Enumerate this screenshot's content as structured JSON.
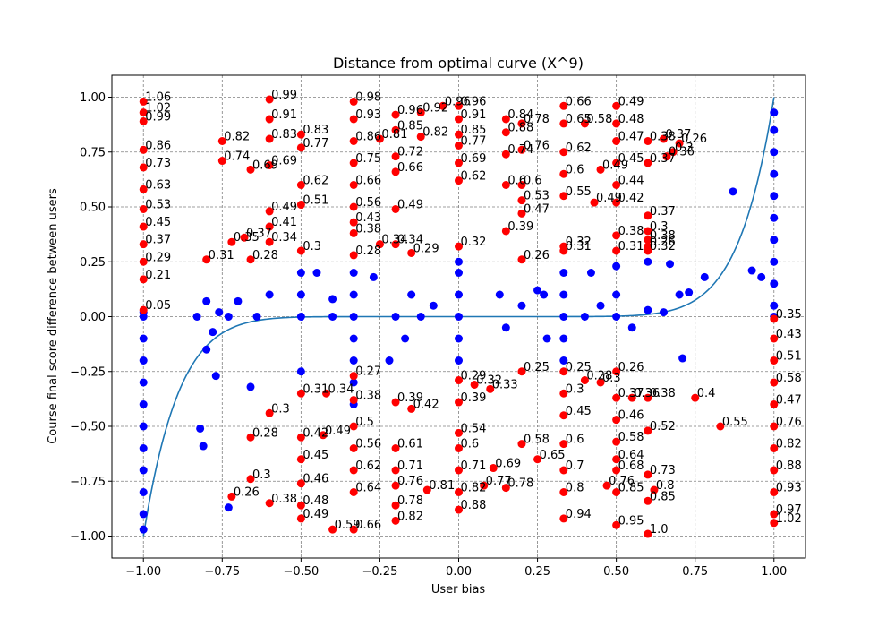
{
  "chart_data": {
    "type": "scatter",
    "title": "Distance from optimal curve (X^9)",
    "xlabel": "User bias",
    "ylabel": "Course final score difference between users",
    "xlim": [
      -1.1,
      1.1
    ],
    "ylim": [
      -1.1,
      1.1
    ],
    "grid": true,
    "x_ticks": [
      -1.0,
      -0.75,
      -0.5,
      -0.25,
      0.0,
      0.25,
      0.5,
      0.75,
      1.0
    ],
    "x_tick_labels": [
      "−1.00",
      "−0.75",
      "−0.50",
      "−0.25",
      "0.00",
      "0.25",
      "0.50",
      "0.75",
      "1.00"
    ],
    "y_ticks": [
      -1.0,
      -0.75,
      -0.5,
      -0.25,
      0.0,
      0.25,
      0.5,
      0.75,
      1.0
    ],
    "y_tick_labels": [
      "−1.00",
      "−0.75",
      "−0.50",
      "−0.25",
      "0.00",
      "0.25",
      "0.50",
      "0.75",
      "1.00"
    ],
    "curve": {
      "formula": "y = x^9",
      "color": "#1f77b4"
    },
    "colors": {
      "near": "#0000ff",
      "far": "#ff0000"
    },
    "blue_points": [
      [
        -1.0,
        -0.97
      ],
      [
        -1.0,
        -0.9
      ],
      [
        -1.0,
        -0.8
      ],
      [
        -1.0,
        -0.7
      ],
      [
        -1.0,
        -0.6
      ],
      [
        -1.0,
        -0.5
      ],
      [
        -1.0,
        -0.4
      ],
      [
        -1.0,
        -0.3
      ],
      [
        -1.0,
        -0.2
      ],
      [
        -1.0,
        -0.1
      ],
      [
        -1.0,
        0.0
      ],
      [
        -1.0,
        0.02
      ],
      [
        -0.83,
        0.0
      ],
      [
        -0.82,
        -0.51
      ],
      [
        -0.81,
        -0.59
      ],
      [
        -0.8,
        -0.15
      ],
      [
        -0.8,
        0.07
      ],
      [
        -0.78,
        -0.07
      ],
      [
        -0.77,
        -0.27
      ],
      [
        -0.76,
        0.02
      ],
      [
        -0.73,
        -0.87
      ],
      [
        -0.73,
        0.0
      ],
      [
        -0.7,
        0.07
      ],
      [
        -0.66,
        -0.32
      ],
      [
        -0.64,
        0.0
      ],
      [
        -0.6,
        0.1
      ],
      [
        -0.5,
        -0.25
      ],
      [
        -0.5,
        0.0
      ],
      [
        -0.5,
        0.1
      ],
      [
        -0.5,
        0.2
      ],
      [
        -0.45,
        0.2
      ],
      [
        -0.4,
        0.0
      ],
      [
        -0.4,
        0.08
      ],
      [
        -0.333,
        -0.4
      ],
      [
        -0.333,
        -0.3
      ],
      [
        -0.333,
        -0.2
      ],
      [
        -0.333,
        -0.1
      ],
      [
        -0.333,
        0.0
      ],
      [
        -0.333,
        0.1
      ],
      [
        -0.333,
        0.2
      ],
      [
        -0.27,
        0.18
      ],
      [
        -0.22,
        -0.2
      ],
      [
        -0.2,
        0.0
      ],
      [
        -0.17,
        -0.1
      ],
      [
        -0.15,
        0.1
      ],
      [
        -0.12,
        0.0
      ],
      [
        -0.08,
        0.05
      ],
      [
        0.0,
        -0.2
      ],
      [
        0.0,
        -0.1
      ],
      [
        0.0,
        0.0
      ],
      [
        0.0,
        0.1
      ],
      [
        0.0,
        0.2
      ],
      [
        0.0,
        0.25
      ],
      [
        0.13,
        0.1
      ],
      [
        0.15,
        -0.05
      ],
      [
        0.2,
        0.05
      ],
      [
        0.25,
        0.12
      ],
      [
        0.27,
        0.1
      ],
      [
        0.28,
        -0.1
      ],
      [
        0.333,
        -0.2
      ],
      [
        0.333,
        -0.1
      ],
      [
        0.333,
        0.0
      ],
      [
        0.333,
        0.1
      ],
      [
        0.333,
        0.2
      ],
      [
        0.4,
        0.0
      ],
      [
        0.42,
        0.2
      ],
      [
        0.45,
        0.05
      ],
      [
        0.5,
        0.0
      ],
      [
        0.5,
        0.1
      ],
      [
        0.5,
        0.23
      ],
      [
        0.55,
        -0.05
      ],
      [
        0.6,
        0.03
      ],
      [
        0.6,
        0.25
      ],
      [
        0.65,
        0.02
      ],
      [
        0.67,
        0.24
      ],
      [
        0.7,
        0.1
      ],
      [
        0.71,
        -0.19
      ],
      [
        0.73,
        0.11
      ],
      [
        0.78,
        0.18
      ],
      [
        0.87,
        0.57
      ],
      [
        0.93,
        0.21
      ],
      [
        0.96,
        0.18
      ],
      [
        1.0,
        0.93
      ],
      [
        1.0,
        0.85
      ],
      [
        1.0,
        0.75
      ],
      [
        1.0,
        0.65
      ],
      [
        1.0,
        0.55
      ],
      [
        1.0,
        0.45
      ],
      [
        1.0,
        0.35
      ],
      [
        1.0,
        0.25
      ],
      [
        1.0,
        0.15
      ],
      [
        1.0,
        0.05
      ],
      [
        1.0,
        0.0
      ]
    ],
    "red_points": [
      {
        "x": -1.0,
        "y": 0.98,
        "label": "1.06"
      },
      {
        "x": -1.0,
        "y": 0.93,
        "label": "1.02"
      },
      {
        "x": -1.0,
        "y": 0.89,
        "label": "0.99"
      },
      {
        "x": -1.0,
        "y": 0.76,
        "label": "0.86"
      },
      {
        "x": -1.0,
        "y": 0.68,
        "label": "0.73"
      },
      {
        "x": -1.0,
        "y": 0.58,
        "label": "0.63"
      },
      {
        "x": -1.0,
        "y": 0.49,
        "label": "0.53"
      },
      {
        "x": -1.0,
        "y": 0.41,
        "label": "0.45"
      },
      {
        "x": -1.0,
        "y": 0.33,
        "label": "0.37"
      },
      {
        "x": -1.0,
        "y": 0.25,
        "label": "0.29"
      },
      {
        "x": -1.0,
        "y": 0.17,
        "label": "0.21"
      },
      {
        "x": -1.0,
        "y": 0.03,
        "label": "0.05"
      },
      {
        "x": -0.8,
        "y": 0.26,
        "label": "0.31"
      },
      {
        "x": -0.75,
        "y": 0.71,
        "label": "0.74"
      },
      {
        "x": -0.75,
        "y": 0.8,
        "label": "0.82"
      },
      {
        "x": -0.72,
        "y": 0.34,
        "label": "0.35"
      },
      {
        "x": -0.68,
        "y": 0.36,
        "label": "0.37"
      },
      {
        "x": -0.66,
        "y": 0.26,
        "label": "0.28"
      },
      {
        "x": -0.66,
        "y": 0.67,
        "label": "0.69"
      },
      {
        "x": -0.6,
        "y": 0.99,
        "label": "0.99"
      },
      {
        "x": -0.6,
        "y": 0.9,
        "label": "0.91"
      },
      {
        "x": -0.6,
        "y": 0.81,
        "label": "0.83"
      },
      {
        "x": -0.6,
        "y": 0.69,
        "label": "0.69"
      },
      {
        "x": -0.6,
        "y": 0.48,
        "label": "0.49"
      },
      {
        "x": -0.6,
        "y": 0.41,
        "label": "0.41"
      },
      {
        "x": -0.6,
        "y": 0.34,
        "label": "0.34"
      },
      {
        "x": -0.6,
        "y": -0.44,
        "label": "0.3"
      },
      {
        "x": -0.6,
        "y": -0.85,
        "label": "0.38"
      },
      {
        "x": -0.66,
        "y": -0.55,
        "label": "0.28"
      },
      {
        "x": -0.66,
        "y": -0.74,
        "label": "0.3"
      },
      {
        "x": -0.72,
        "y": -0.82,
        "label": "0.26"
      },
      {
        "x": -0.5,
        "y": 0.83,
        "label": "0.83"
      },
      {
        "x": -0.5,
        "y": 0.77,
        "label": "0.77"
      },
      {
        "x": -0.5,
        "y": 0.6,
        "label": "0.62"
      },
      {
        "x": -0.5,
        "y": 0.51,
        "label": "0.51"
      },
      {
        "x": -0.5,
        "y": 0.3,
        "label": "0.3"
      },
      {
        "x": -0.5,
        "y": -0.35,
        "label": "0.31"
      },
      {
        "x": -0.5,
        "y": -0.55,
        "label": "0.42"
      },
      {
        "x": -0.5,
        "y": -0.65,
        "label": "0.45"
      },
      {
        "x": -0.5,
        "y": -0.76,
        "label": "0.46"
      },
      {
        "x": -0.5,
        "y": -0.86,
        "label": "0.48"
      },
      {
        "x": -0.5,
        "y": -0.92,
        "label": "0.49"
      },
      {
        "x": -0.42,
        "y": -0.35,
        "label": "0.34"
      },
      {
        "x": -0.43,
        "y": -0.54,
        "label": "0.49"
      },
      {
        "x": -0.4,
        "y": -0.97,
        "label": "0.59"
      },
      {
        "x": -0.333,
        "y": 0.98,
        "label": "0.98"
      },
      {
        "x": -0.333,
        "y": 0.9,
        "label": "0.93"
      },
      {
        "x": -0.333,
        "y": 0.8,
        "label": "0.86"
      },
      {
        "x": -0.333,
        "y": 0.7,
        "label": "0.75"
      },
      {
        "x": -0.333,
        "y": 0.6,
        "label": "0.66"
      },
      {
        "x": -0.333,
        "y": 0.5,
        "label": "0.56"
      },
      {
        "x": -0.333,
        "y": 0.43,
        "label": "0.43"
      },
      {
        "x": -0.333,
        "y": 0.38,
        "label": "0.38"
      },
      {
        "x": -0.333,
        "y": 0.28,
        "label": "0.28"
      },
      {
        "x": -0.333,
        "y": -0.27,
        "label": "0.27"
      },
      {
        "x": -0.333,
        "y": -0.38,
        "label": "0.38"
      },
      {
        "x": -0.333,
        "y": -0.5,
        "label": "0.5"
      },
      {
        "x": -0.333,
        "y": -0.6,
        "label": "0.56"
      },
      {
        "x": -0.333,
        "y": -0.7,
        "label": "0.62"
      },
      {
        "x": -0.333,
        "y": -0.8,
        "label": "0.64"
      },
      {
        "x": -0.333,
        "y": -0.97,
        "label": "0.66"
      },
      {
        "x": -0.25,
        "y": 0.81,
        "label": "0.81"
      },
      {
        "x": -0.25,
        "y": 0.33,
        "label": "0.34"
      },
      {
        "x": -0.2,
        "y": 0.92,
        "label": "0.96"
      },
      {
        "x": -0.2,
        "y": 0.85,
        "label": "0.85"
      },
      {
        "x": -0.2,
        "y": 0.73,
        "label": "0.72"
      },
      {
        "x": -0.2,
        "y": 0.66,
        "label": "0.66"
      },
      {
        "x": -0.2,
        "y": 0.49,
        "label": "0.49"
      },
      {
        "x": -0.2,
        "y": 0.33,
        "label": "0.34"
      },
      {
        "x": -0.2,
        "y": -0.39,
        "label": "0.39"
      },
      {
        "x": -0.2,
        "y": -0.6,
        "label": "0.61"
      },
      {
        "x": -0.2,
        "y": -0.7,
        "label": "0.71"
      },
      {
        "x": -0.2,
        "y": -0.77,
        "label": "0.76"
      },
      {
        "x": -0.2,
        "y": -0.86,
        "label": "0.78"
      },
      {
        "x": -0.2,
        "y": -0.93,
        "label": "0.82"
      },
      {
        "x": -0.15,
        "y": 0.29,
        "label": "0.29"
      },
      {
        "x": -0.15,
        "y": -0.42,
        "label": "0.42"
      },
      {
        "x": -0.12,
        "y": 0.93,
        "label": "0.92"
      },
      {
        "x": -0.12,
        "y": 0.82,
        "label": "0.82"
      },
      {
        "x": -0.1,
        "y": -0.79,
        "label": "0.81"
      },
      {
        "x": -0.05,
        "y": 0.96,
        "label": "0.96"
      },
      {
        "x": 0.0,
        "y": 0.96,
        "label": "0.96"
      },
      {
        "x": 0.0,
        "y": 0.9,
        "label": "0.91"
      },
      {
        "x": 0.0,
        "y": 0.83,
        "label": "0.85"
      },
      {
        "x": 0.0,
        "y": 0.78,
        "label": "0.77"
      },
      {
        "x": 0.0,
        "y": 0.7,
        "label": "0.69"
      },
      {
        "x": 0.0,
        "y": 0.62,
        "label": "0.62"
      },
      {
        "x": 0.0,
        "y": 0.32,
        "label": "0.32"
      },
      {
        "x": 0.0,
        "y": -0.29,
        "label": "0.29"
      },
      {
        "x": 0.0,
        "y": -0.39,
        "label": "0.39"
      },
      {
        "x": 0.0,
        "y": -0.53,
        "label": "0.54"
      },
      {
        "x": 0.0,
        "y": -0.6,
        "label": "0.6"
      },
      {
        "x": 0.0,
        "y": -0.7,
        "label": "0.71"
      },
      {
        "x": 0.0,
        "y": -0.8,
        "label": "0.82"
      },
      {
        "x": 0.0,
        "y": -0.88,
        "label": "0.88"
      },
      {
        "x": 0.05,
        "y": -0.31,
        "label": "0.32"
      },
      {
        "x": 0.08,
        "y": -0.77,
        "label": "0.77"
      },
      {
        "x": 0.1,
        "y": -0.33,
        "label": "0.33"
      },
      {
        "x": 0.11,
        "y": -0.69,
        "label": "0.69"
      },
      {
        "x": 0.15,
        "y": 0.9,
        "label": "0.84"
      },
      {
        "x": 0.15,
        "y": 0.84,
        "label": "0.88"
      },
      {
        "x": 0.15,
        "y": 0.74,
        "label": "0.74"
      },
      {
        "x": 0.15,
        "y": 0.6,
        "label": "0.6"
      },
      {
        "x": 0.15,
        "y": 0.39,
        "label": "0.39"
      },
      {
        "x": 0.15,
        "y": -0.78,
        "label": "0.78"
      },
      {
        "x": 0.2,
        "y": 0.88,
        "label": "0.78"
      },
      {
        "x": 0.2,
        "y": 0.76,
        "label": "0.76"
      },
      {
        "x": 0.2,
        "y": 0.6,
        "label": "0.6"
      },
      {
        "x": 0.2,
        "y": 0.53,
        "label": "0.53"
      },
      {
        "x": 0.2,
        "y": 0.47,
        "label": "0.47"
      },
      {
        "x": 0.2,
        "y": 0.26,
        "label": "0.26"
      },
      {
        "x": 0.2,
        "y": -0.25,
        "label": "0.25"
      },
      {
        "x": 0.2,
        "y": -0.58,
        "label": "0.58"
      },
      {
        "x": 0.25,
        "y": -0.65,
        "label": "0.65"
      },
      {
        "x": 0.333,
        "y": 0.96,
        "label": "0.66"
      },
      {
        "x": 0.333,
        "y": 0.88,
        "label": "0.65"
      },
      {
        "x": 0.333,
        "y": 0.75,
        "label": "0.62"
      },
      {
        "x": 0.333,
        "y": 0.65,
        "label": "0.6"
      },
      {
        "x": 0.333,
        "y": 0.55,
        "label": "0.55"
      },
      {
        "x": 0.333,
        "y": 0.32,
        "label": "0.32"
      },
      {
        "x": 0.333,
        "y": 0.3,
        "label": "0.31"
      },
      {
        "x": 0.333,
        "y": -0.25,
        "label": "0.25"
      },
      {
        "x": 0.333,
        "y": -0.35,
        "label": "0.3"
      },
      {
        "x": 0.333,
        "y": -0.45,
        "label": "0.45"
      },
      {
        "x": 0.333,
        "y": -0.58,
        "label": "0.6"
      },
      {
        "x": 0.333,
        "y": -0.7,
        "label": "0.7"
      },
      {
        "x": 0.333,
        "y": -0.8,
        "label": "0.8"
      },
      {
        "x": 0.333,
        "y": -0.92,
        "label": "0.94"
      },
      {
        "x": 0.4,
        "y": 0.88,
        "label": "0.58"
      },
      {
        "x": 0.4,
        "y": -0.29,
        "label": "0.28"
      },
      {
        "x": 0.43,
        "y": 0.52,
        "label": "0.49"
      },
      {
        "x": 0.45,
        "y": -0.3,
        "label": "0.3"
      },
      {
        "x": 0.45,
        "y": 0.67,
        "label": "0.49"
      },
      {
        "x": 0.47,
        "y": -0.77,
        "label": "0.76"
      },
      {
        "x": 0.5,
        "y": 0.96,
        "label": "0.49"
      },
      {
        "x": 0.5,
        "y": 0.88,
        "label": "0.48"
      },
      {
        "x": 0.5,
        "y": 0.8,
        "label": "0.47"
      },
      {
        "x": 0.5,
        "y": 0.7,
        "label": "0.45"
      },
      {
        "x": 0.5,
        "y": 0.6,
        "label": "0.44"
      },
      {
        "x": 0.5,
        "y": 0.52,
        "label": "0.42"
      },
      {
        "x": 0.5,
        "y": 0.37,
        "label": "0.38"
      },
      {
        "x": 0.5,
        "y": 0.3,
        "label": "0.31"
      },
      {
        "x": 0.5,
        "y": -0.25,
        "label": "0.26"
      },
      {
        "x": 0.5,
        "y": -0.37,
        "label": "0.37"
      },
      {
        "x": 0.5,
        "y": -0.47,
        "label": "0.46"
      },
      {
        "x": 0.5,
        "y": -0.57,
        "label": "0.58"
      },
      {
        "x": 0.5,
        "y": -0.65,
        "label": "0.64"
      },
      {
        "x": 0.5,
        "y": -0.7,
        "label": "0.68"
      },
      {
        "x": 0.5,
        "y": -0.8,
        "label": "0.85"
      },
      {
        "x": 0.5,
        "y": -0.95,
        "label": "0.95"
      },
      {
        "x": 0.55,
        "y": -0.37,
        "label": "0.36"
      },
      {
        "x": 0.6,
        "y": 0.8,
        "label": "0.38"
      },
      {
        "x": 0.6,
        "y": 0.7,
        "label": "0.37"
      },
      {
        "x": 0.6,
        "y": 0.46,
        "label": "0.37"
      },
      {
        "x": 0.6,
        "y": 0.35,
        "label": "0.38"
      },
      {
        "x": 0.6,
        "y": 0.3,
        "label": "0.32"
      },
      {
        "x": 0.6,
        "y": -0.37,
        "label": "0.38"
      },
      {
        "x": 0.6,
        "y": -0.52,
        "label": "0.52"
      },
      {
        "x": 0.6,
        "y": -0.72,
        "label": "0.73"
      },
      {
        "x": 0.6,
        "y": -0.84,
        "label": "0.85"
      },
      {
        "x": 0.6,
        "y": -0.99,
        "label": "1.0"
      },
      {
        "x": 0.62,
        "y": -0.79,
        "label": "0.8"
      },
      {
        "x": 0.65,
        "y": 0.81,
        "label": "0.37"
      },
      {
        "x": 0.66,
        "y": 0.73,
        "label": "0.36"
      },
      {
        "x": 0.68,
        "y": 0.75,
        "label": "0.3"
      },
      {
        "x": 0.7,
        "y": 0.79,
        "label": "0.26"
      },
      {
        "x": 0.6,
        "y": 0.39,
        "label": "0.3"
      },
      {
        "x": 0.6,
        "y": 0.32,
        "label": "0.26"
      },
      {
        "x": 0.75,
        "y": -0.37,
        "label": "0.4"
      },
      {
        "x": 0.83,
        "y": -0.5,
        "label": "0.55"
      },
      {
        "x": 1.0,
        "y": -0.01,
        "label": "0.35"
      },
      {
        "x": 1.0,
        "y": -0.1,
        "label": "0.43"
      },
      {
        "x": 1.0,
        "y": -0.2,
        "label": "0.51"
      },
      {
        "x": 1.0,
        "y": -0.3,
        "label": "0.58"
      },
      {
        "x": 1.0,
        "y": -0.4,
        "label": "0.47"
      },
      {
        "x": 1.0,
        "y": -0.5,
        "label": "0.76"
      },
      {
        "x": 1.0,
        "y": -0.6,
        "label": "0.82"
      },
      {
        "x": 1.0,
        "y": -0.7,
        "label": "0.88"
      },
      {
        "x": 1.0,
        "y": -0.8,
        "label": "0.93"
      },
      {
        "x": 1.0,
        "y": -0.9,
        "label": "0.97"
      },
      {
        "x": 1.0,
        "y": -0.94,
        "label": "1.02"
      }
    ]
  }
}
